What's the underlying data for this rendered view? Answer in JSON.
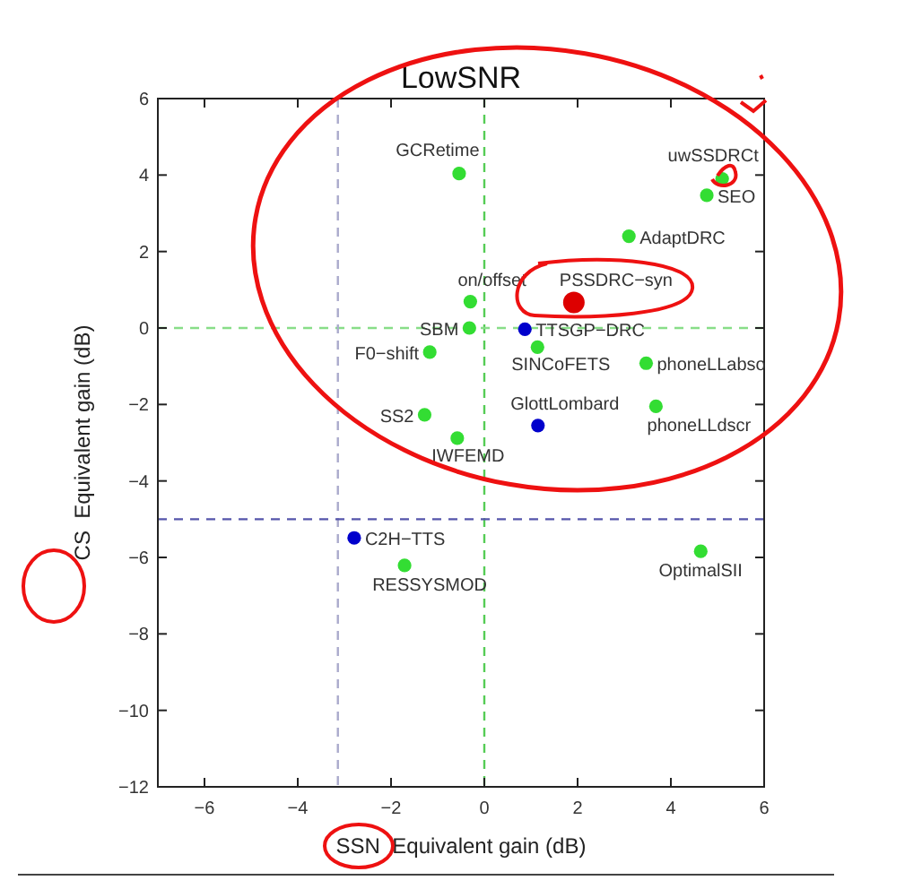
{
  "chart_data": {
    "type": "scatter",
    "title": "LowSNR",
    "xlabel": "SSN  Equivalent gain (dB)",
    "ylabel": "CS  Equivalent gain (dB)",
    "xlim": [
      -7,
      6
    ],
    "ylim": [
      -12,
      6
    ],
    "xticks": [
      -6,
      -4,
      -2,
      0,
      2,
      4,
      6
    ],
    "yticks": [
      -12,
      -10,
      -8,
      -6,
      -4,
      -2,
      0,
      2,
      4,
      6
    ],
    "grid": false,
    "marker": "circle",
    "series": [
      {
        "color": "#33dd33",
        "x": [
          -0.54,
          5.1,
          4.77,
          3.1,
          -0.3,
          -0.32,
          1.14,
          -1.17,
          3.47,
          -1.28,
          3.68,
          -0.58,
          -1.71,
          4.64
        ],
        "values": [
          4.04,
          3.9,
          3.47,
          2.4,
          0.69,
          0.0,
          -0.5,
          -0.63,
          -0.92,
          -2.27,
          -2.05,
          -2.88,
          -6.21,
          -5.84
        ]
      },
      {
        "color": "#0000cc",
        "x": [
          0.87,
          1.15,
          -2.79
        ],
        "values": [
          -0.03,
          -2.55,
          -5.49
        ]
      },
      {
        "color": "#dd0000",
        "x": [
          1.92
        ],
        "values": [
          0.67
        ]
      }
    ],
    "ref_lines": [
      {
        "axis": "x",
        "value": 0,
        "color": "#55cc55",
        "line_style": "dashed"
      },
      {
        "axis": "y",
        "value": 0,
        "color": "#88dd88",
        "line_style": "dashed"
      },
      {
        "axis": "x",
        "value": -3.14,
        "color": "#aaaacc",
        "line_style": "dashed"
      },
      {
        "axis": "y",
        "value": -5,
        "color": "#5555aa",
        "line_style": "dashed"
      }
    ],
    "annotations": [
      {
        "text": "GCRetime",
        "x": -0.54,
        "y": 4.04
      },
      {
        "text": "uwSSDRCt",
        "x": 5.1,
        "y": 3.9
      },
      {
        "text": "SEO",
        "x": 4.77,
        "y": 3.47
      },
      {
        "text": "AdaptDRC",
        "x": 3.1,
        "y": 2.4
      },
      {
        "text": "PSSDRC−syn",
        "x": 1.92,
        "y": 0.67
      },
      {
        "text": "on/offset",
        "x": -0.3,
        "y": 0.69
      },
      {
        "text": "SBM",
        "x": -0.32,
        "y": 0.0
      },
      {
        "text": "TTSGP−DRC",
        "x": 0.87,
        "y": -0.03
      },
      {
        "text": "SINCoFETS",
        "x": 1.14,
        "y": -0.5
      },
      {
        "text": "F0−shift",
        "x": -1.17,
        "y": -0.63
      },
      {
        "text": "phoneLLabso",
        "x": 3.47,
        "y": -0.92
      },
      {
        "text": "SS2",
        "x": -1.28,
        "y": -2.27
      },
      {
        "text": "GlottLombard",
        "x": 1.15,
        "y": -2.55
      },
      {
        "text": "phoneLLdscr",
        "x": 3.68,
        "y": -2.05
      },
      {
        "text": "IWFEMD",
        "x": -0.58,
        "y": -2.88
      },
      {
        "text": "C2H−TTS",
        "x": -2.79,
        "y": -5.49
      },
      {
        "text": "RESSYSMOD",
        "x": -1.71,
        "y": -6.21
      },
      {
        "text": "OptimalSII",
        "x": 4.64,
        "y": -5.84
      }
    ]
  }
}
